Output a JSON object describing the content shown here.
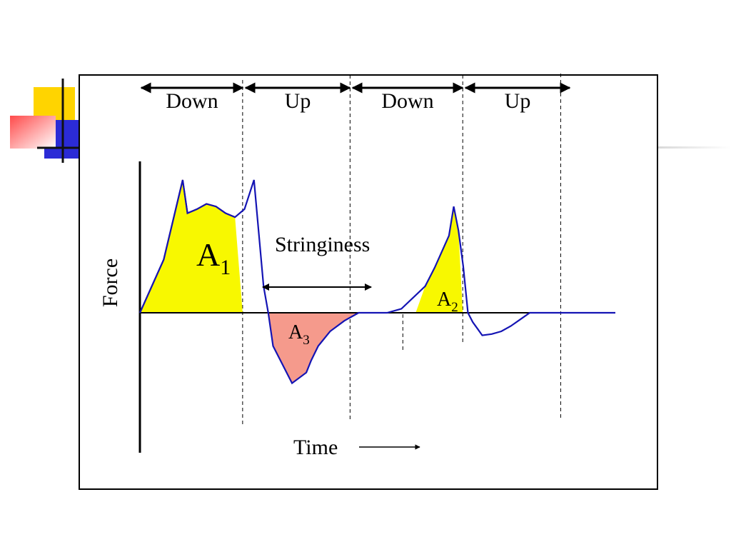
{
  "decoration": {
    "colors": {
      "yellow": "#FFD400",
      "blue": "#2B2BD6",
      "red": "#FF5050",
      "dark": "#111111"
    }
  },
  "chart_data": {
    "type": "line",
    "title": "",
    "xlabel": "Time",
    "ylabel": "Force",
    "grid": false,
    "phases": [
      "Down",
      "Up",
      "Down",
      "Up"
    ],
    "annotations": {
      "stringiness_label": "Stringiness",
      "area_a1": {
        "base": "A",
        "sub": "1"
      },
      "area_a2": {
        "base": "A",
        "sub": "2"
      },
      "area_a3": {
        "base": "A",
        "sub": "3"
      }
    },
    "x_range": [
      0,
      100
    ],
    "y_range": [
      -60,
      100
    ],
    "series": [
      {
        "color": "#1414B4",
        "x": [
          0,
          5,
          9,
          10,
          12,
          14,
          16,
          18,
          20,
          22,
          24,
          25,
          26,
          27,
          28,
          32,
          35,
          36,
          37.5,
          40,
          43,
          46,
          49,
          52,
          55,
          60,
          62,
          65,
          66,
          67,
          68,
          69,
          70,
          71,
          72,
          74,
          76,
          78,
          80,
          82,
          84,
          86,
          88,
          90,
          95,
          100
        ],
        "y": [
          0,
          40,
          100,
          75,
          78,
          82,
          80,
          75,
          72,
          78,
          100,
          60,
          20,
          0,
          -25,
          -53,
          -45,
          -36,
          -25,
          -14,
          -6,
          0,
          0,
          0,
          3,
          20,
          34,
          58,
          80,
          62,
          35,
          0,
          -7,
          -12,
          -17,
          -16,
          -14,
          -10,
          -5,
          0,
          0,
          0,
          0,
          0,
          0,
          0
        ]
      }
    ],
    "x_markers": [
      21.6,
      44.2,
      55.3,
      67.9,
      88.5
    ]
  }
}
